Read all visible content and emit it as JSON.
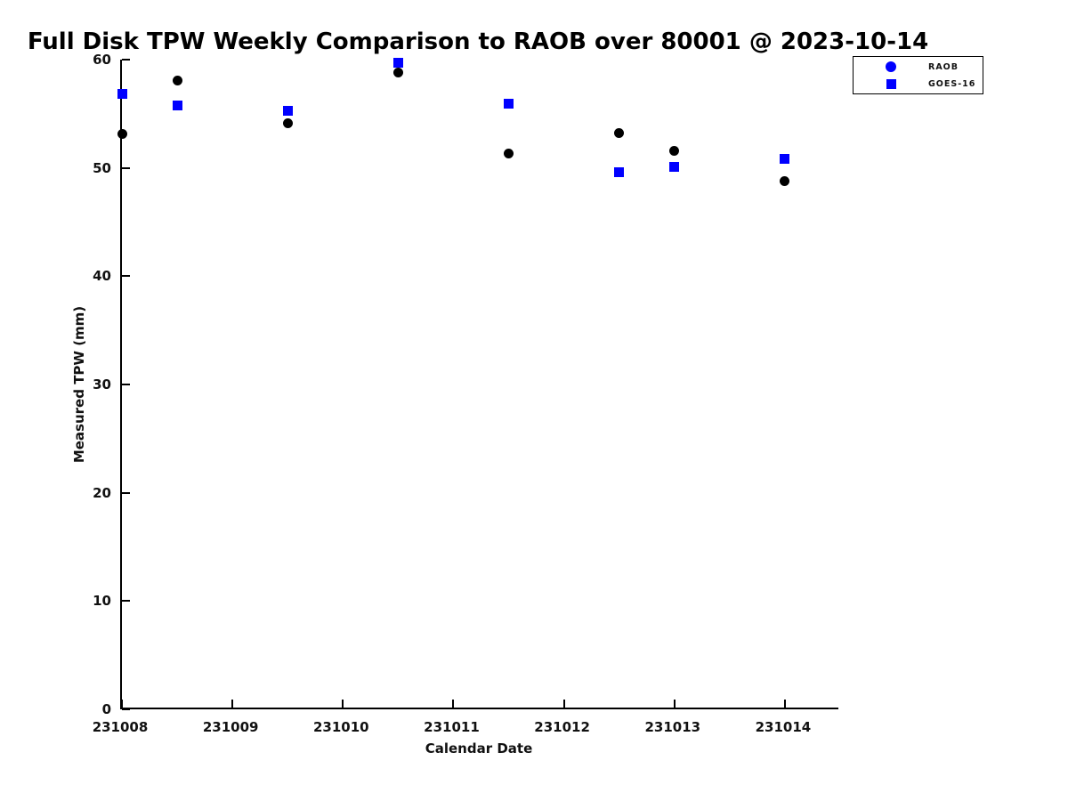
{
  "chart_data": {
    "type": "scatter",
    "title": "Full Disk TPW Weekly Comparison to RAOB over 80001 @ 2023-10-14",
    "xlabel": "Calendar Date",
    "ylabel": "Measured TPW (mm)",
    "xlim": [
      231008,
      231014.5
    ],
    "ylim": [
      0,
      60
    ],
    "x_ticks": [
      231008,
      231009,
      231010,
      231011,
      231012,
      231013,
      231014
    ],
    "y_ticks": [
      0,
      10,
      20,
      30,
      40,
      50,
      60
    ],
    "grid": false,
    "tick_direction": "in",
    "spines": [
      "left",
      "bottom"
    ],
    "legend": {
      "position": "upper right",
      "entries": [
        {
          "label": "RAOB",
          "marker": "circle",
          "color": "#0000ff"
        },
        {
          "label": "GOES-16",
          "marker": "square",
          "color": "#0000ff"
        }
      ]
    },
    "series": [
      {
        "name": "RAOB",
        "marker": "circle",
        "color": "#000000",
        "x": [
          231008.0,
          231008.5,
          231009.5,
          231010.5,
          231011.5,
          231012.5,
          231013.0,
          231014.0
        ],
        "y": [
          53.1,
          58.1,
          54.1,
          58.8,
          51.3,
          53.2,
          51.6,
          48.8
        ]
      },
      {
        "name": "GOES-16",
        "marker": "square",
        "color": "#0000ff",
        "x": [
          231008.0,
          231008.5,
          231009.5,
          231010.5,
          231011.5,
          231012.5,
          231013.0,
          231014.0
        ],
        "y": [
          56.8,
          55.8,
          55.3,
          59.7,
          55.9,
          49.6,
          50.1,
          50.8
        ]
      }
    ]
  },
  "colors": {
    "background": "#ffffff",
    "axis": "#000000",
    "text": "#111111",
    "marker_black": "#000000",
    "marker_blue": "#0000ff"
  }
}
